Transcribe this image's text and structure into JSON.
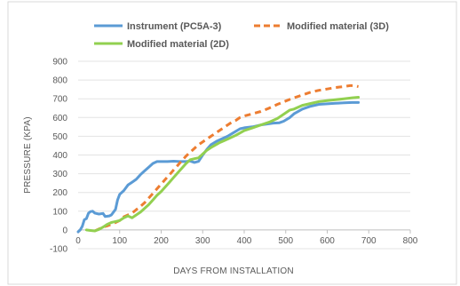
{
  "chart_data": {
    "type": "line",
    "title": "",
    "xlabel": "DAYS FROM INSTALLATION",
    "ylabel": "PRESSURE (KPA)",
    "xlim": [
      0,
      800
    ],
    "ylim": [
      -100,
      900
    ],
    "x_ticks": [
      0,
      100,
      200,
      300,
      400,
      500,
      600,
      700,
      800
    ],
    "y_ticks": [
      -100,
      0,
      100,
      200,
      300,
      400,
      500,
      600,
      700,
      800,
      900
    ],
    "grid": "horizontal",
    "legend_position": "top",
    "series": [
      {
        "name": "Instrument (PC5A-3)",
        "color": "#5B9BD5",
        "dash": "solid",
        "points": [
          [
            0,
            -10
          ],
          [
            5,
            0
          ],
          [
            10,
            20
          ],
          [
            15,
            55
          ],
          [
            20,
            60
          ],
          [
            25,
            90
          ],
          [
            30,
            98
          ],
          [
            35,
            100
          ],
          [
            40,
            90
          ],
          [
            50,
            85
          ],
          [
            60,
            88
          ],
          [
            65,
            72
          ],
          [
            75,
            75
          ],
          [
            80,
            80
          ],
          [
            90,
            110
          ],
          [
            95,
            160
          ],
          [
            100,
            190
          ],
          [
            110,
            210
          ],
          [
            120,
            240
          ],
          [
            130,
            255
          ],
          [
            140,
            270
          ],
          [
            150,
            295
          ],
          [
            160,
            315
          ],
          [
            170,
            335
          ],
          [
            180,
            355
          ],
          [
            190,
            365
          ],
          [
            200,
            365
          ],
          [
            215,
            365
          ],
          [
            230,
            367
          ],
          [
            245,
            365
          ],
          [
            260,
            365
          ],
          [
            270,
            368
          ],
          [
            280,
            360
          ],
          [
            290,
            366
          ],
          [
            300,
            400
          ],
          [
            310,
            430
          ],
          [
            320,
            455
          ],
          [
            335,
            475
          ],
          [
            350,
            490
          ],
          [
            360,
            500
          ],
          [
            375,
            520
          ],
          [
            390,
            540
          ],
          [
            400,
            545
          ],
          [
            420,
            550
          ],
          [
            440,
            560
          ],
          [
            455,
            565
          ],
          [
            470,
            570
          ],
          [
            485,
            572
          ],
          [
            495,
            580
          ],
          [
            510,
            600
          ],
          [
            520,
            620
          ],
          [
            540,
            645
          ],
          [
            560,
            660
          ],
          [
            580,
            670
          ],
          [
            600,
            673
          ],
          [
            620,
            676
          ],
          [
            640,
            678
          ],
          [
            660,
            680
          ],
          [
            675,
            680
          ]
        ]
      },
      {
        "name": "Modified material (3D)",
        "color": "#ED7D31",
        "dash": "dashed",
        "points": [
          [
            40,
            -5
          ],
          [
            50,
            5
          ],
          [
            60,
            15
          ],
          [
            70,
            22
          ],
          [
            80,
            30
          ],
          [
            90,
            40
          ],
          [
            100,
            50
          ],
          [
            110,
            70
          ],
          [
            120,
            80
          ],
          [
            130,
            90
          ],
          [
            140,
            108
          ],
          [
            150,
            125
          ],
          [
            160,
            145
          ],
          [
            170,
            170
          ],
          [
            180,
            195
          ],
          [
            190,
            220
          ],
          [
            200,
            245
          ],
          [
            210,
            270
          ],
          [
            220,
            295
          ],
          [
            230,
            320
          ],
          [
            240,
            345
          ],
          [
            250,
            370
          ],
          [
            260,
            395
          ],
          [
            270,
            415
          ],
          [
            280,
            435
          ],
          [
            290,
            455
          ],
          [
            300,
            470
          ],
          [
            310,
            485
          ],
          [
            320,
            500
          ],
          [
            330,
            515
          ],
          [
            340,
            530
          ],
          [
            350,
            545
          ],
          [
            360,
            560
          ],
          [
            370,
            575
          ],
          [
            380,
            585
          ],
          [
            390,
            600
          ],
          [
            400,
            608
          ],
          [
            420,
            620
          ],
          [
            440,
            632
          ],
          [
            460,
            650
          ],
          [
            480,
            670
          ],
          [
            500,
            688
          ],
          [
            520,
            705
          ],
          [
            540,
            720
          ],
          [
            560,
            735
          ],
          [
            580,
            745
          ],
          [
            600,
            752
          ],
          [
            620,
            760
          ],
          [
            640,
            765
          ],
          [
            655,
            770
          ],
          [
            665,
            770
          ],
          [
            675,
            765
          ]
        ]
      },
      {
        "name": "Modified material (2D)",
        "color": "#92D050",
        "dash": "solid",
        "points": [
          [
            20,
            0
          ],
          [
            30,
            -3
          ],
          [
            40,
            -5
          ],
          [
            50,
            3
          ],
          [
            60,
            15
          ],
          [
            70,
            30
          ],
          [
            80,
            40
          ],
          [
            90,
            45
          ],
          [
            100,
            50
          ],
          [
            110,
            65
          ],
          [
            120,
            75
          ],
          [
            130,
            65
          ],
          [
            140,
            80
          ],
          [
            150,
            95
          ],
          [
            160,
            115
          ],
          [
            170,
            135
          ],
          [
            180,
            160
          ],
          [
            190,
            185
          ],
          [
            200,
            205
          ],
          [
            210,
            230
          ],
          [
            220,
            255
          ],
          [
            230,
            280
          ],
          [
            240,
            305
          ],
          [
            250,
            330
          ],
          [
            260,
            355
          ],
          [
            270,
            375
          ],
          [
            280,
            380
          ],
          [
            290,
            385
          ],
          [
            300,
            405
          ],
          [
            310,
            425
          ],
          [
            320,
            440
          ],
          [
            340,
            465
          ],
          [
            360,
            485
          ],
          [
            380,
            505
          ],
          [
            400,
            530
          ],
          [
            420,
            545
          ],
          [
            440,
            560
          ],
          [
            460,
            575
          ],
          [
            480,
            595
          ],
          [
            500,
            625
          ],
          [
            510,
            640
          ],
          [
            520,
            645
          ],
          [
            540,
            665
          ],
          [
            560,
            675
          ],
          [
            580,
            685
          ],
          [
            600,
            690
          ],
          [
            620,
            695
          ],
          [
            640,
            700
          ],
          [
            660,
            705
          ],
          [
            675,
            708
          ]
        ]
      }
    ]
  }
}
